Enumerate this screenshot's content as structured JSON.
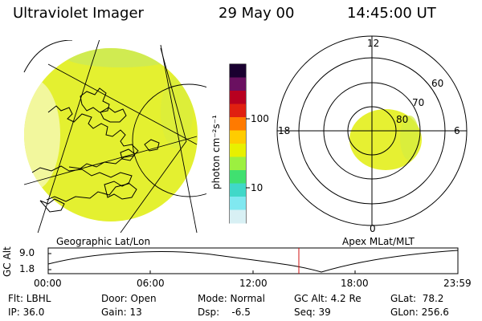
{
  "header": {
    "instrument": "Ultraviolet Imager",
    "date": "29 May 00",
    "time": "14:45:00 UT"
  },
  "colorbar": {
    "unit_label": "photon cm⁻²s⁻¹",
    "ticks": [
      "100",
      "10"
    ],
    "colors": [
      "#1a0030",
      "#6a1060",
      "#b80020",
      "#e02010",
      "#ff7a00",
      "#ffcc00",
      "#e8f000",
      "#9cf040",
      "#40e070",
      "#40d8c8",
      "#80e8f0",
      "#d8f0f4"
    ]
  },
  "polar_plot": {
    "mlt_labels": [
      "12",
      "6",
      "0",
      "18"
    ],
    "lat_labels": [
      "60",
      "70",
      "80"
    ],
    "oval_color": "#e6f032"
  },
  "geo_image": {
    "disk_color": "#e4f030"
  },
  "panel_labels": {
    "left": "Geographic Lat/Lon",
    "right": "Apex MLat/MLT"
  },
  "altitude_plot": {
    "axis_label": "GC Alt",
    "y_ticks": [
      "9.0",
      "1.8"
    ],
    "x_ticks": [
      "00:00",
      "06:00",
      "12:00",
      "18:00",
      "23:59"
    ],
    "current_marker_color": "#d01010"
  },
  "info": {
    "filter": "Flt: LBHL",
    "ip": "IP: 36.0",
    "door": "Door: Open",
    "gain": "Gain: 13",
    "mode": "Mode: Normal",
    "dsp": "Dsp:    -6.5",
    "gc_alt": "GC Alt: 4.2 Re",
    "seq": "Seq: 39",
    "glat": "GLat:  78.2",
    "glon": "GLon: 256.6"
  }
}
